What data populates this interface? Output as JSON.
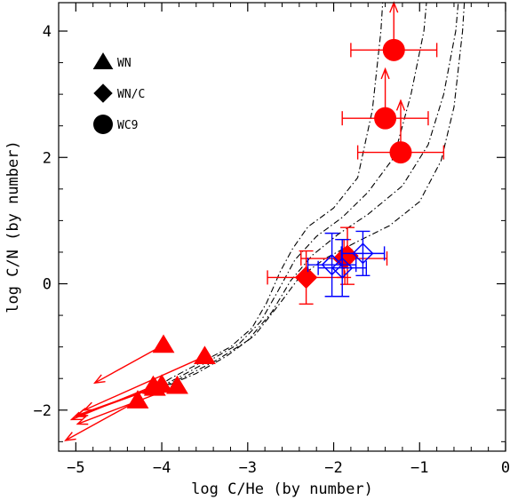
{
  "chart_data": {
    "type": "scatter",
    "xlabel": "log C/He (by number)",
    "ylabel": "log C/N (by number)",
    "xlim": [
      -5.2,
      0
    ],
    "ylim": [
      -2.65,
      4.45
    ],
    "x_ticks": [
      -5,
      -4,
      -3,
      -2,
      -1,
      0
    ],
    "y_ticks": [
      -2,
      0,
      2,
      4
    ],
    "x_tick_labels": [
      "−5",
      "−4",
      "−3",
      "−2",
      "−1",
      "0"
    ],
    "y_tick_labels": [
      "−2",
      "0",
      "2",
      "4"
    ],
    "grid": false,
    "legend_position": "top-left",
    "colors": {
      "observed": "#ff0000",
      "reference": "#0000ff",
      "models": "#000000"
    },
    "legend": [
      {
        "marker": "triangle",
        "label": "WN"
      },
      {
        "marker": "diamond",
        "label": "WN/C"
      },
      {
        "marker": "circle",
        "label": "WC9"
      }
    ],
    "series": [
      {
        "marker": "triangle",
        "color": "#ff0000",
        "upper_limit_arrows": true,
        "points": [
          {
            "x": -3.98,
            "y": -0.97,
            "arrow_to": [
              -4.78,
              -1.57
            ]
          },
          {
            "x": -3.5,
            "y": -1.15,
            "arrow_to": [
              -4.9,
              -2.0
            ]
          },
          {
            "x": -4.0,
            "y": -1.6,
            "arrow_to": [
              -4.98,
              -2.08
            ]
          },
          {
            "x": -4.08,
            "y": -1.65,
            "arrow_to": [
              -5.0,
              -2.1
            ]
          },
          {
            "x": -4.1,
            "y": -1.62,
            "arrow_to": [
              -5.05,
              -2.15
            ]
          },
          {
            "x": -3.82,
            "y": -1.62,
            "arrow_to": [
              -4.98,
              -2.22
            ]
          },
          {
            "x": -4.28,
            "y": -1.85,
            "arrow_to": [
              -5.12,
              -2.48
            ]
          }
        ]
      },
      {
        "marker": "diamond",
        "color": "#ff0000",
        "points": [
          {
            "x": -2.32,
            "y": 0.1,
            "xerr": 0.45,
            "yerr": 0.42
          },
          {
            "x": -1.88,
            "y": 0.4,
            "xerr": 0.5,
            "yerr": 0.3
          },
          {
            "x": -1.84,
            "y": 0.44,
            "xerr": 0.05,
            "yerr": 0.45
          }
        ]
      },
      {
        "marker": "circle",
        "color": "#ff0000",
        "points": [
          {
            "x": -1.3,
            "y": 3.7,
            "xerr": 0.5,
            "yerr": 0.0,
            "up_arrow_to": 4.45
          },
          {
            "x": -1.4,
            "y": 2.62,
            "xerr": 0.5,
            "yerr": 0.0,
            "up_arrow_to": 3.4
          },
          {
            "x": -1.22,
            "y": 2.08,
            "xerr": 0.5,
            "yerr": 0.0,
            "up_arrow_to": 2.9
          }
        ]
      },
      {
        "marker": "open-diamond",
        "color": "#0000ff",
        "points": [
          {
            "x": -2.02,
            "y": 0.3,
            "xerr": 0.28,
            "yerr": 0.5
          },
          {
            "x": -1.9,
            "y": 0.25,
            "xerr": 0.28,
            "yerr": 0.45
          },
          {
            "x": -1.66,
            "y": 0.48,
            "xerr": 0.25,
            "yerr": 0.35
          }
        ]
      }
    ],
    "model_curves": [
      {
        "style": "dash-dot",
        "points": [
          [
            -4.2,
            -1.75
          ],
          [
            -3.9,
            -1.5
          ],
          [
            -3.55,
            -1.25
          ],
          [
            -3.2,
            -1.0
          ],
          [
            -2.95,
            -0.7
          ],
          [
            -2.78,
            -0.3
          ],
          [
            -2.62,
            0.2
          ],
          [
            -2.48,
            0.55
          ],
          [
            -2.3,
            0.9
          ],
          [
            -2.0,
            1.2
          ],
          [
            -1.72,
            1.68
          ],
          [
            -1.55,
            2.75
          ],
          [
            -1.45,
            4.0
          ],
          [
            -1.43,
            4.45
          ]
        ]
      },
      {
        "style": "dash-dot",
        "points": [
          [
            -4.15,
            -1.72
          ],
          [
            -3.8,
            -1.48
          ],
          [
            -3.45,
            -1.22
          ],
          [
            -3.1,
            -0.95
          ],
          [
            -2.85,
            -0.6
          ],
          [
            -2.65,
            -0.12
          ],
          [
            -2.45,
            0.38
          ],
          [
            -2.2,
            0.75
          ],
          [
            -1.9,
            1.05
          ],
          [
            -1.6,
            1.45
          ],
          [
            -1.3,
            2.0
          ],
          [
            -1.1,
            3.0
          ],
          [
            -0.95,
            4.0
          ],
          [
            -0.92,
            4.45
          ]
        ]
      },
      {
        "style": "dash-dot",
        "points": [
          [
            -4.1,
            -1.7
          ],
          [
            -3.7,
            -1.45
          ],
          [
            -3.35,
            -1.2
          ],
          [
            -3.0,
            -0.9
          ],
          [
            -2.72,
            -0.45
          ],
          [
            -2.5,
            0.05
          ],
          [
            -2.25,
            0.45
          ],
          [
            -1.95,
            0.78
          ],
          [
            -1.6,
            1.1
          ],
          [
            -1.2,
            1.55
          ],
          [
            -0.9,
            2.2
          ],
          [
            -0.72,
            3.0
          ],
          [
            -0.58,
            4.0
          ],
          [
            -0.55,
            4.45
          ]
        ]
      },
      {
        "style": "dash-dot",
        "points": [
          [
            -4.05,
            -1.68
          ],
          [
            -3.6,
            -1.42
          ],
          [
            -3.25,
            -1.15
          ],
          [
            -2.92,
            -0.82
          ],
          [
            -2.62,
            -0.3
          ],
          [
            -2.4,
            0.1
          ],
          [
            -2.1,
            0.4
          ],
          [
            -1.75,
            0.65
          ],
          [
            -1.35,
            0.92
          ],
          [
            -1.0,
            1.3
          ],
          [
            -0.75,
            1.95
          ],
          [
            -0.6,
            2.8
          ],
          [
            -0.5,
            4.0
          ],
          [
            -0.48,
            4.45
          ]
        ]
      }
    ]
  }
}
